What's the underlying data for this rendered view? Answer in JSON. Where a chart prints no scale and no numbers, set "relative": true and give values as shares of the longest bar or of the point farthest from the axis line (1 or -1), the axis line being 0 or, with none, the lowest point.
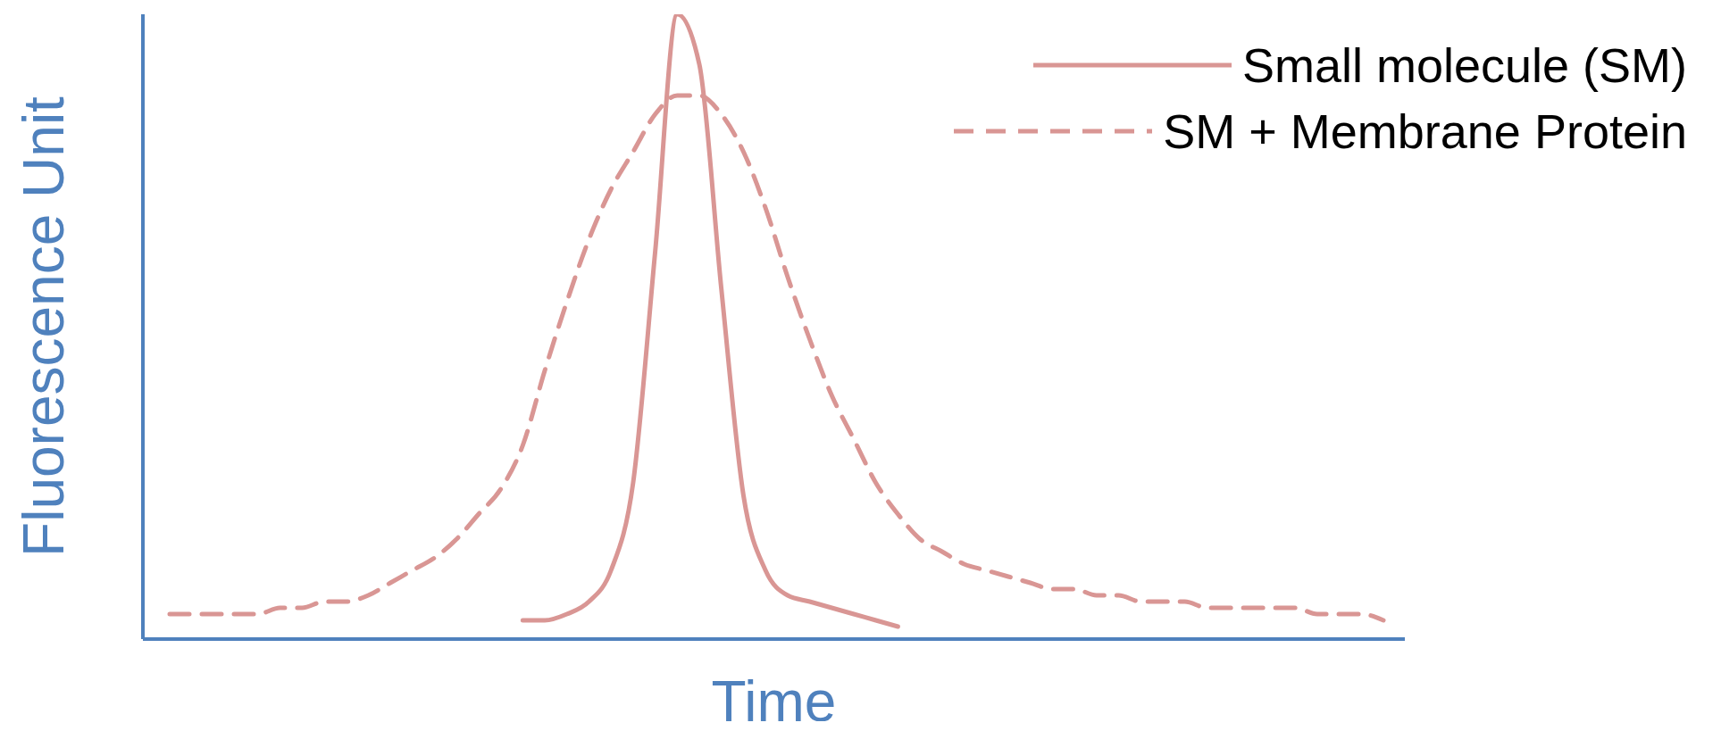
{
  "chart_data": {
    "type": "line",
    "relative": true,
    "xlabel": "Time",
    "ylabel": "Fluorescence Unit",
    "legend": "top right",
    "grid": false,
    "marker": "none",
    "categories": [
      null,
      null,
      null,
      null,
      null,
      null,
      null,
      null,
      null,
      null,
      null,
      null,
      null,
      null,
      null,
      null,
      null,
      null,
      null,
      null,
      null,
      null,
      null,
      null,
      null,
      null,
      null,
      null,
      null,
      null,
      null,
      null,
      null,
      null,
      null,
      null,
      null,
      null,
      null,
      null,
      null,
      null,
      null,
      null,
      null,
      null,
      null,
      null,
      null,
      null,
      null,
      null,
      null,
      null,
      null,
      null
    ],
    "series": [
      {
        "name": "Small molecule (SM)",
        "color": "#d99694",
        "line_style": "solid",
        "values": [
          null,
          null,
          null,
          null,
          null,
          null,
          null,
          null,
          null,
          null,
          null,
          null,
          null,
          null,
          null,
          null,
          0.03,
          0.03,
          0.04,
          0.06,
          0.11,
          0.25,
          0.62,
          1.0,
          0.92,
          0.56,
          0.23,
          0.11,
          0.07,
          0.06,
          0.05,
          0.04,
          0.03,
          0.02,
          null,
          null,
          null,
          null,
          null,
          null,
          null,
          null,
          null,
          null,
          null,
          null,
          null,
          null,
          null,
          null,
          null,
          null,
          null,
          null,
          null,
          null
        ]
      },
      {
        "name": "SM + Membrane Protein",
        "color": "#d99694",
        "line_style": "dashed",
        "values": [
          0.04,
          0.04,
          0.04,
          0.04,
          0.04,
          0.05,
          0.05,
          0.06,
          0.06,
          0.07,
          0.09,
          0.11,
          0.13,
          0.16,
          0.2,
          0.24,
          0.31,
          0.43,
          0.54,
          0.64,
          0.72,
          0.78,
          0.84,
          0.87,
          0.87,
          0.84,
          0.78,
          0.69,
          0.58,
          0.48,
          0.39,
          0.32,
          0.25,
          0.2,
          0.16,
          0.14,
          0.12,
          0.11,
          0.1,
          0.09,
          0.08,
          0.08,
          0.07,
          0.07,
          0.06,
          0.06,
          0.06,
          0.05,
          0.05,
          0.05,
          0.05,
          0.05,
          0.04,
          0.04,
          0.04,
          0.03
        ]
      }
    ]
  }
}
